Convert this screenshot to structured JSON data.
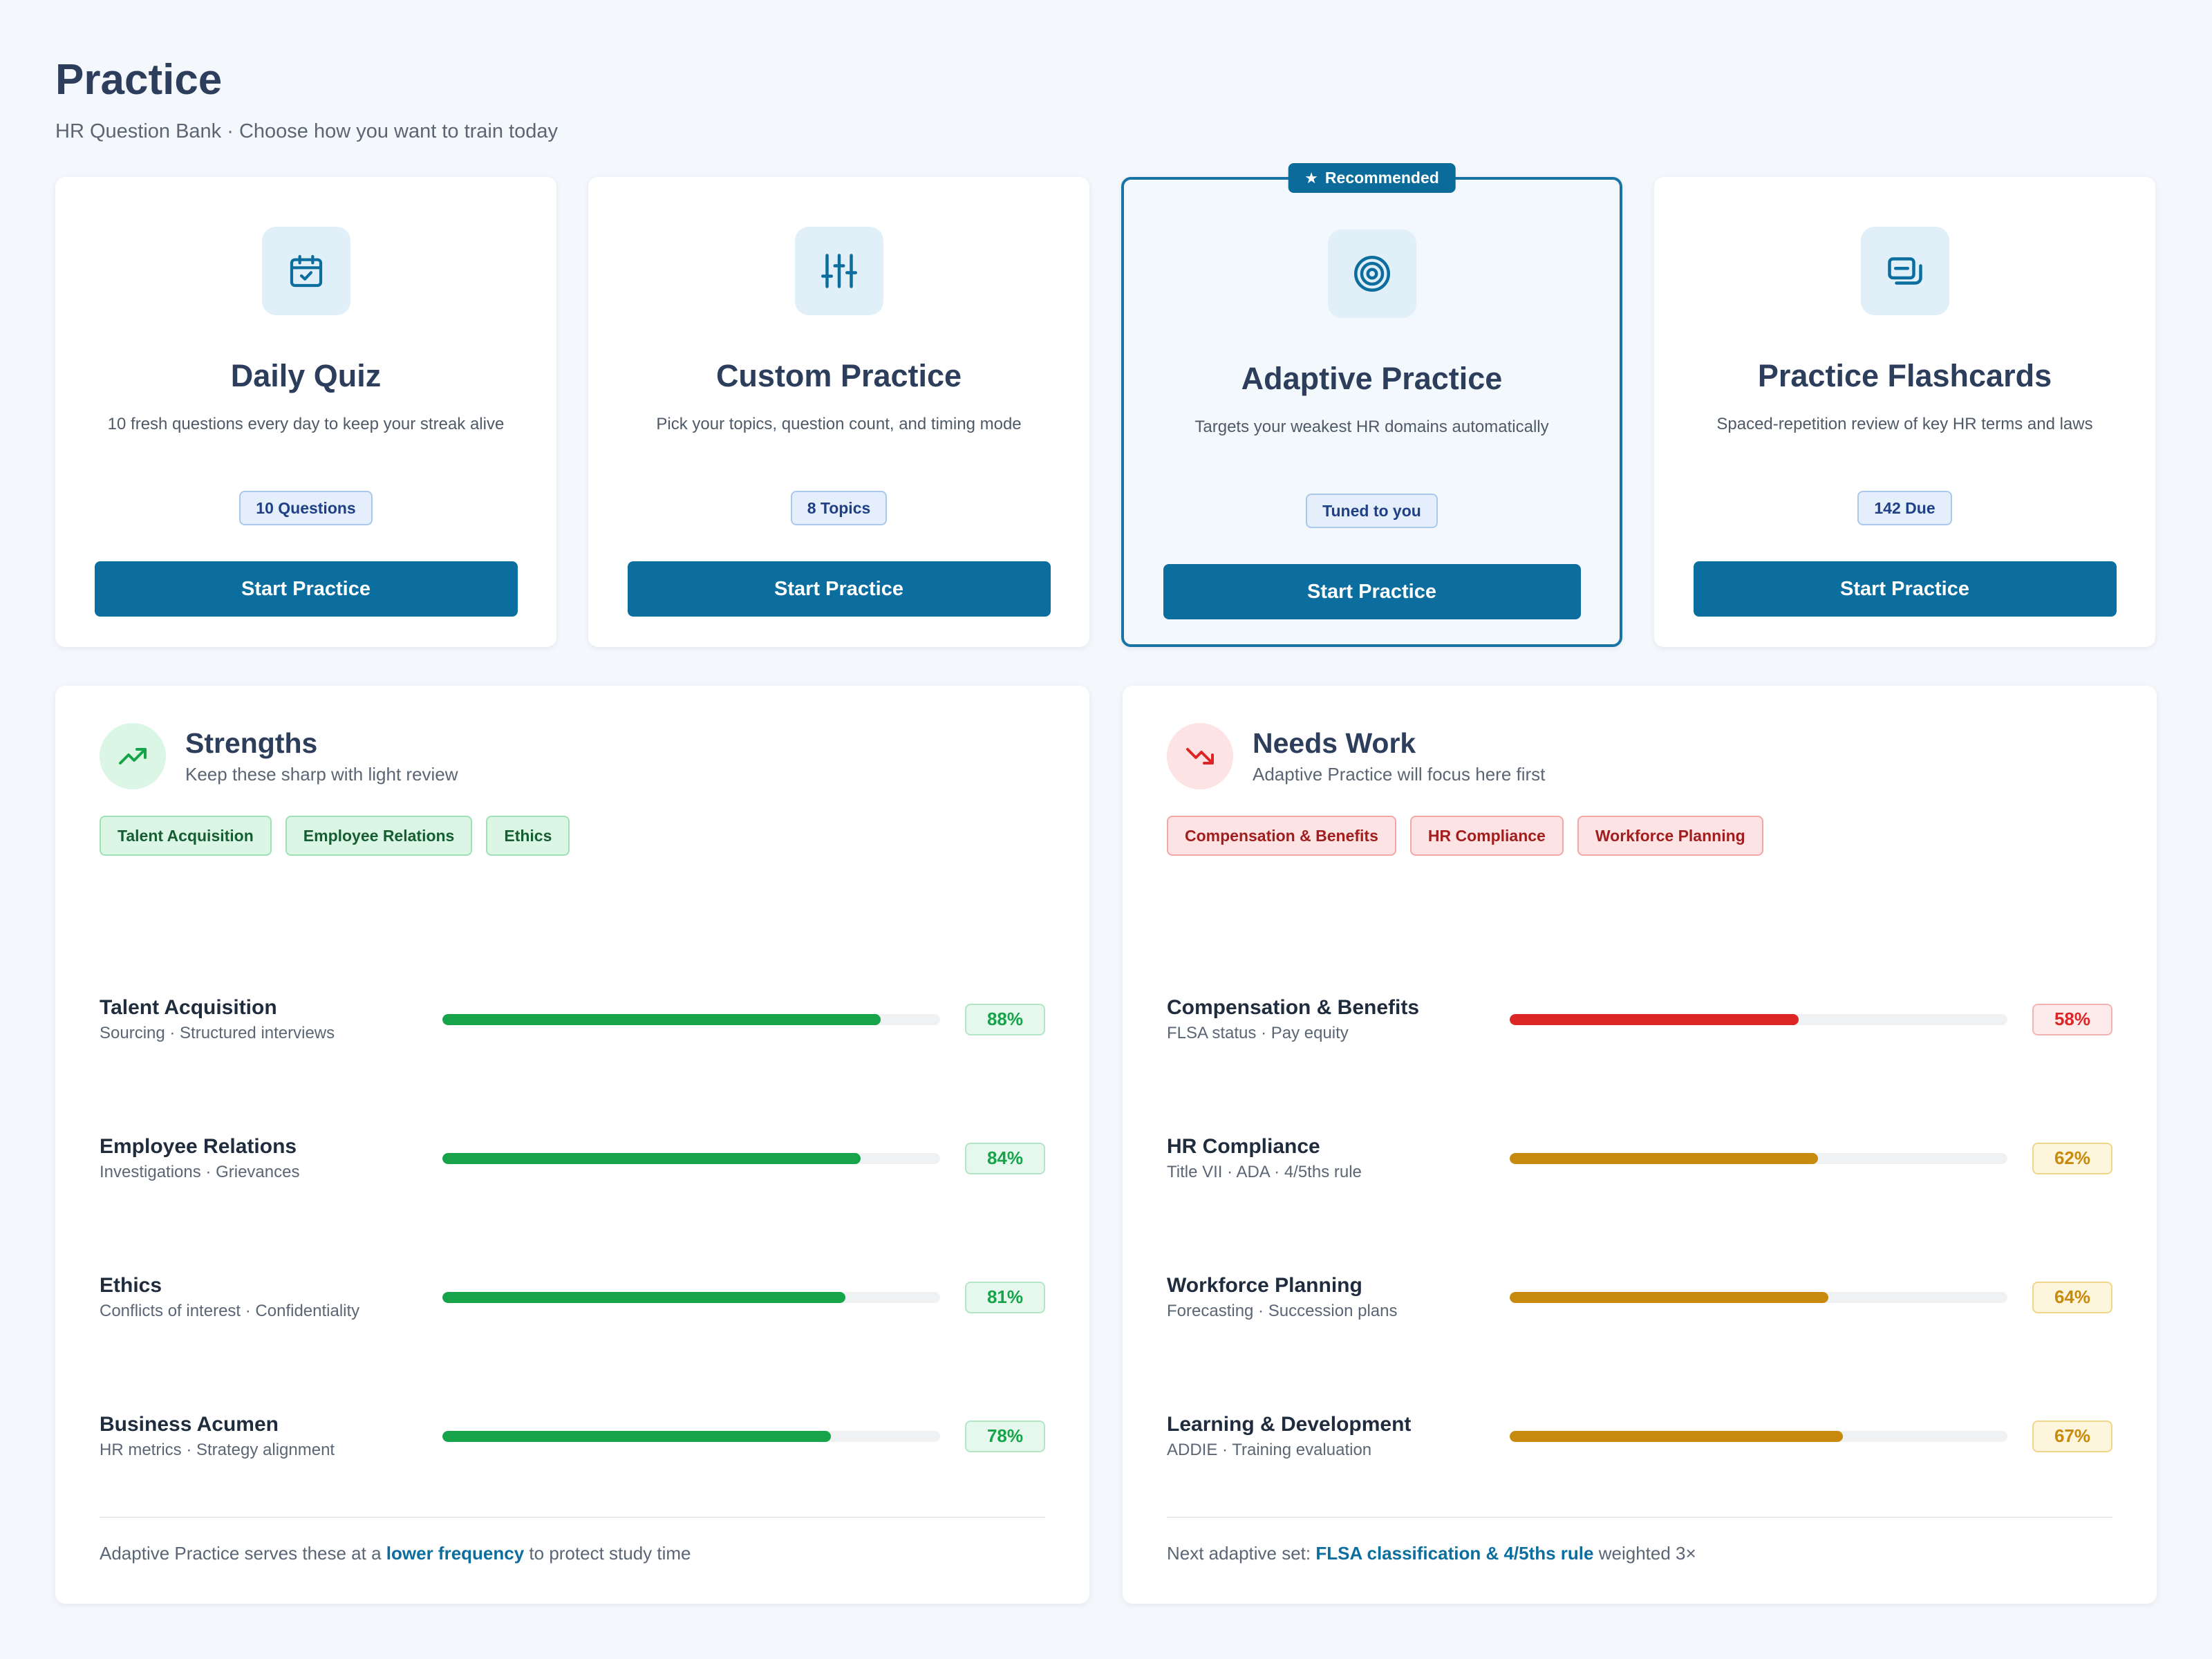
{
  "header": {
    "title": "Practice",
    "subtitle": "HR Question Bank · Choose how you want to train today"
  },
  "modes": [
    {
      "title": "Daily Quiz",
      "desc": "10 fresh questions every day to keep your streak alive",
      "chip": "10 Questions",
      "button": "Start Practice",
      "icon": "calendar-check-icon"
    },
    {
      "title": "Custom Practice",
      "desc": "Pick your topics, question count, and timing mode",
      "chip": "8 Topics",
      "button": "Start Practice",
      "icon": "sliders-icon"
    },
    {
      "title": "Adaptive Practice",
      "desc": "Targets your weakest HR domains automatically",
      "chip": "Tuned to you",
      "button": "Start Practice",
      "icon": "target-icon",
      "badge": "Recommended"
    },
    {
      "title": "Practice Flashcards",
      "desc": "Spaced-repetition review of key HR terms and laws",
      "chip": "142 Due",
      "button": "Start Practice",
      "icon": "flashcards-icon"
    }
  ],
  "strengths": {
    "title": "Strengths",
    "subtitle": "Keep these sharp with light review",
    "tags": [
      "Talent Acquisition",
      "Employee Relations",
      "Ethics"
    ],
    "metrics": [
      {
        "name": "Talent Acquisition",
        "sub": "Sourcing · Structured interviews",
        "value": 88,
        "label": "88%"
      },
      {
        "name": "Employee Relations",
        "sub": "Investigations · Grievances",
        "value": 84,
        "label": "84%"
      },
      {
        "name": "Ethics",
        "sub": "Conflicts of interest · Confidentiality",
        "value": 81,
        "label": "81%"
      },
      {
        "name": "Business Acumen",
        "sub": "HR metrics · Strategy alignment",
        "value": 78,
        "label": "78%"
      }
    ],
    "footer": {
      "pre": "Adaptive Practice serves these at a ",
      "highlight": "lower frequency",
      "post": " to protect study time"
    }
  },
  "needs_work": {
    "title": "Needs Work",
    "subtitle": "Adaptive Practice will focus here first",
    "tags": [
      "Compensation & Benefits",
      "HR Compliance",
      "Workforce Planning"
    ],
    "metrics": [
      {
        "name": "Compensation & Benefits",
        "sub": "FLSA status · Pay equity",
        "value": 58,
        "label": "58%",
        "level": "red"
      },
      {
        "name": "HR Compliance",
        "sub": "Title VII · ADA · 4/5ths rule",
        "value": 62,
        "label": "62%",
        "level": "amber"
      },
      {
        "name": "Workforce Planning",
        "sub": "Forecasting · Succession plans",
        "value": 64,
        "label": "64%",
        "level": "amber"
      },
      {
        "name": "Learning & Development",
        "sub": "ADDIE · Training evaluation",
        "value": 67,
        "label": "67%",
        "level": "amber"
      }
    ],
    "footer": {
      "pre": "Next adaptive set: ",
      "highlight": "FLSA classification & 4/5ths rule",
      "post": " weighted 3×"
    }
  },
  "colors": {
    "primary": "#0c6e9e",
    "green": "#16a34a",
    "red": "#dc2626",
    "amber": "#c88a0e"
  }
}
